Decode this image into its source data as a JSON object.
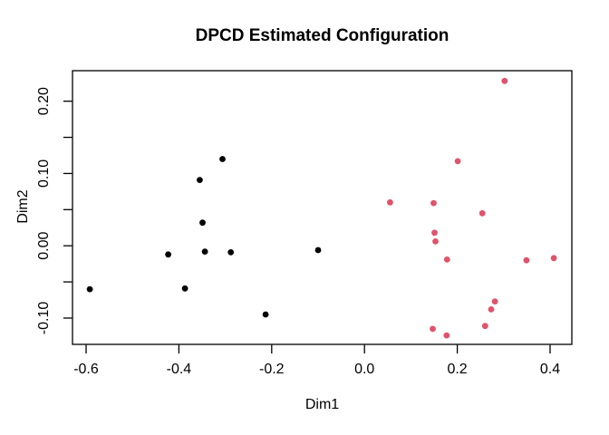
{
  "window": {
    "background": "#ffffff"
  },
  "chart_data": {
    "type": "scatter",
    "title": "DPCD Estimated Configuration",
    "xlabel": "Dim1",
    "ylabel": "Dim2",
    "xlim": [
      -0.6293,
      0.4469
    ],
    "ylim": [
      -0.1364,
      0.2422
    ],
    "grid": false,
    "legend": "none",
    "marker": "filled-circle",
    "box_color": "#000000",
    "x_ticks": {
      "values": [
        -0.6,
        -0.4,
        -0.2,
        0.0,
        0.2,
        0.4
      ],
      "labels": [
        "-0.6",
        "-0.4",
        "-0.2",
        "0.0",
        "0.2",
        "0.4"
      ]
    },
    "y_ticks": {
      "values": [
        -0.1,
        -0.05,
        0.0,
        0.05,
        0.1,
        0.15,
        0.2
      ],
      "labels": [
        "-0.10",
        "",
        "0.00",
        "",
        "0.10",
        "",
        "0.20"
      ]
    },
    "series": [
      {
        "name": "cluster-black",
        "color": "#000000",
        "points": [
          [
            -0.592,
            -0.06
          ],
          [
            -0.423,
            -0.012
          ],
          [
            -0.387,
            -0.059
          ],
          [
            -0.355,
            0.091
          ],
          [
            -0.349,
            0.032
          ],
          [
            -0.344,
            -0.008
          ],
          [
            -0.306,
            0.12
          ],
          [
            -0.288,
            -0.009
          ],
          [
            -0.213,
            -0.095
          ],
          [
            -0.1,
            -0.006
          ]
        ]
      },
      {
        "name": "cluster-pink",
        "color": "#DF536B",
        "points": [
          [
            0.302,
            0.228
          ],
          [
            0.201,
            0.117
          ],
          [
            0.055,
            0.06
          ],
          [
            0.149,
            0.059
          ],
          [
            0.254,
            0.045
          ],
          [
            0.151,
            0.018
          ],
          [
            0.153,
            0.006
          ],
          [
            0.178,
            -0.019
          ],
          [
            0.349,
            -0.02
          ],
          [
            0.408,
            -0.017
          ],
          [
            0.281,
            -0.077
          ],
          [
            0.273,
            -0.088
          ],
          [
            0.26,
            -0.111
          ],
          [
            0.147,
            -0.115
          ],
          [
            0.177,
            -0.124
          ]
        ]
      }
    ]
  }
}
